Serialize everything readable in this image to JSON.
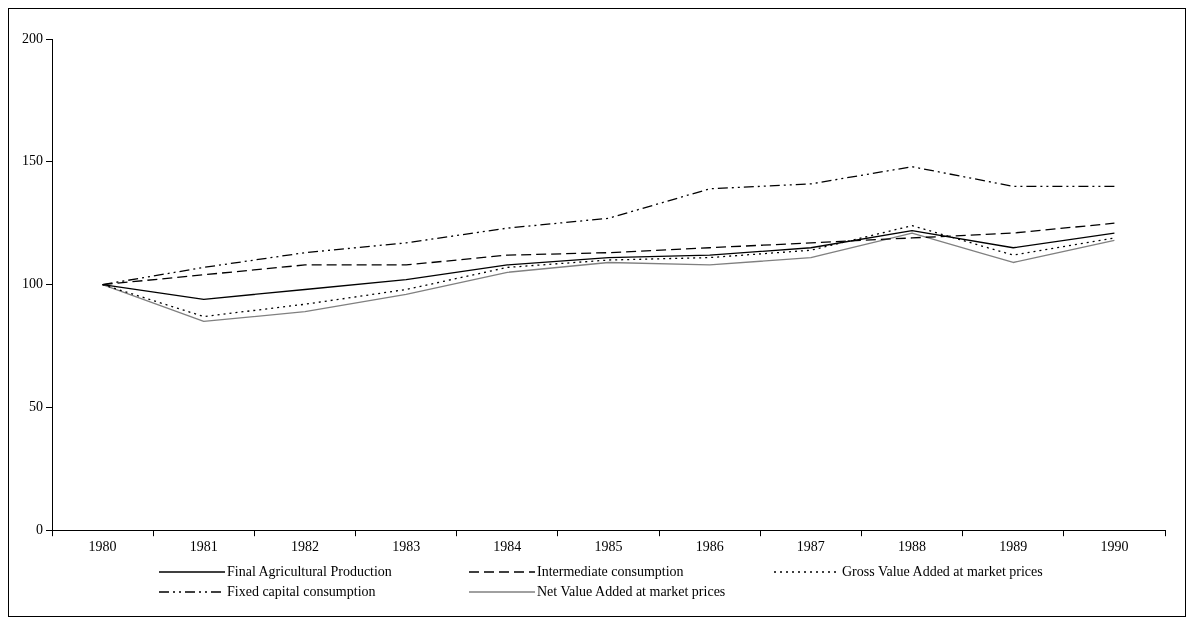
{
  "chart_data": {
    "type": "line",
    "categories": [
      "1980",
      "1981",
      "1982",
      "1983",
      "1984",
      "1985",
      "1986",
      "1987",
      "1988",
      "1989",
      "1990"
    ],
    "series": [
      {
        "name": "Final Agricultural Production",
        "color": "#000000",
        "line_style": "solid",
        "values": [
          100,
          94,
          98,
          102,
          108,
          111,
          112,
          115,
          122,
          115,
          121
        ]
      },
      {
        "name": "Intermediate consumption",
        "color": "#000000",
        "line_style": "dashed",
        "values": [
          100,
          104,
          108,
          108,
          112,
          113,
          115,
          117,
          119,
          121,
          125
        ]
      },
      {
        "name": "Gross Value Added at market prices",
        "color": "#000000",
        "line_style": "dotted",
        "values": [
          100,
          87,
          92,
          98,
          107,
          110,
          111,
          114,
          124,
          112,
          119
        ]
      },
      {
        "name": "Fixed capital consumption",
        "color": "#000000",
        "line_style": "dashdot",
        "values": [
          100,
          107,
          113,
          117,
          123,
          127,
          139,
          141,
          148,
          140,
          140
        ]
      },
      {
        "name": "Net Value Added at market prices",
        "color": "#808080",
        "line_style": "solid",
        "values": [
          100,
          85,
          89,
          96,
          105,
          109,
          108,
          111,
          121,
          109,
          118
        ]
      }
    ],
    "ylim": [
      0,
      200
    ],
    "yticks": [
      0,
      50,
      100,
      150,
      200
    ],
    "grid": false,
    "legend": "bottom",
    "marker": "none"
  }
}
